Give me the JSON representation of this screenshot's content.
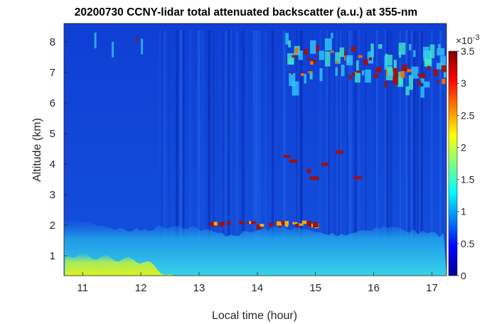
{
  "chart_data": {
    "type": "heatmap",
    "title": "20200730 CCNY-lidar total attenuated backscatter (a.u.) at 355-nm",
    "xlabel": "Local time (hour)",
    "ylabel": "Altitude (km)",
    "xlim": [
      10.68,
      17.25
    ],
    "ylim": [
      0.35,
      8.6
    ],
    "x_ticks": [
      "11",
      "12",
      "13",
      "14",
      "15",
      "16",
      "17"
    ],
    "x_tick_values": [
      11,
      12,
      13,
      14,
      15,
      16,
      17
    ],
    "y_ticks": [
      "1",
      "2",
      "3",
      "4",
      "5",
      "6",
      "7",
      "8"
    ],
    "y_tick_values": [
      1,
      2,
      3,
      4,
      5,
      6,
      7,
      8
    ],
    "colorbar": {
      "multiplier": "×10",
      "exponent": "-3",
      "ticks": [
        "0",
        "0.5",
        "1",
        "1.5",
        "2",
        "2.5",
        "3",
        "3.5"
      ],
      "tick_values": [
        0,
        0.5,
        1,
        1.5,
        2,
        2.5,
        3,
        3.5
      ],
      "range": [
        0,
        3.5
      ],
      "colormap": "jet"
    },
    "colors": {
      "background": "#1446d6",
      "boundary_layer": "#2fd6e6",
      "surface_aerosol": "#d8f020",
      "cloud": "#a01010"
    },
    "features": [
      {
        "name": "Boundary layer aerosol",
        "x": [
          10.68,
          17.25
        ],
        "y_top_km": 2.0,
        "level": 1.4
      },
      {
        "name": "Near-surface aerosol",
        "x": [
          10.7,
          12.6
        ],
        "y_top_km": 1.0,
        "level": 2.0
      },
      {
        "name": "Clouds near boundary layer top",
        "x": [
          13.1,
          15.2
        ],
        "y_km": [
          1.8,
          2.2
        ],
        "level": 3.5
      },
      {
        "name": "Mid-level cloud fragments",
        "x": [
          14.4,
          15.8
        ],
        "y_km": [
          3.5,
          4.5
        ],
        "level": 3.5
      },
      {
        "name": "Upper cloud layer",
        "x": [
          14.5,
          17.25
        ],
        "y_km": [
          6.6,
          8.3
        ],
        "level": 3.5
      }
    ]
  }
}
